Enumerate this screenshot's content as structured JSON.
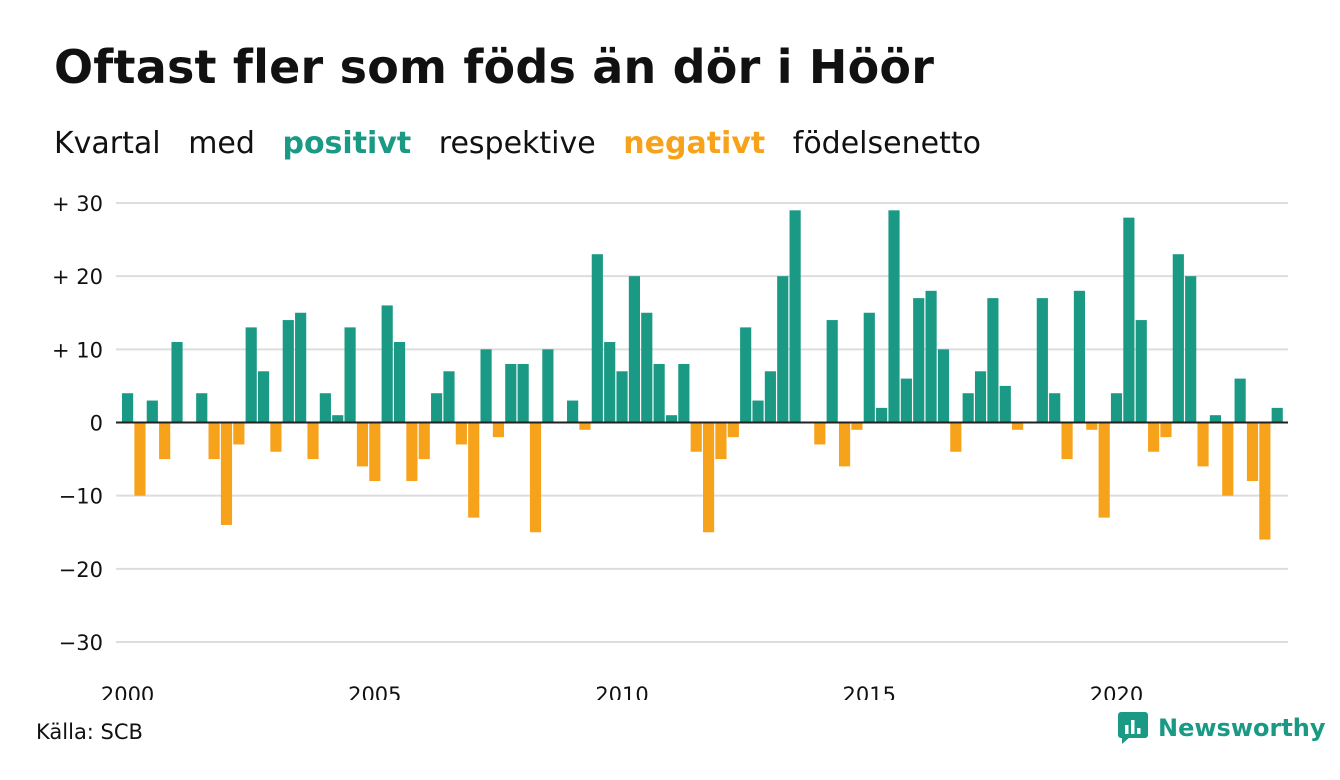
{
  "header": {
    "title": "Oftast fler som föds än dör i Höör",
    "subtitle": {
      "part1": "Kvartal",
      "part2": "med",
      "positive": "positivt",
      "part3": "respektive",
      "negative": "negativt",
      "part4": "födelsenetto"
    }
  },
  "colors": {
    "positive": "#1a9985",
    "negative": "#f7a21b",
    "grid": "#dddddd",
    "baseline": "#222222"
  },
  "footer": {
    "source": "Källa: SCB",
    "brand": "Newsworthy",
    "brand_icon": "bar-chart-chat-icon"
  },
  "chart_data": {
    "type": "bar",
    "x_start_year": 2000,
    "x_start_quarter": 1,
    "ylim": [
      -30,
      30
    ],
    "y_ticks": [
      30,
      20,
      10,
      0,
      -10,
      -20,
      -30
    ],
    "y_tick_labels": [
      "+ 30",
      "+ 20",
      "+ 10",
      "0",
      "−10",
      "−20",
      "−30"
    ],
    "x_ticks": [
      2000,
      2005,
      2010,
      2015,
      2020
    ],
    "x_tick_labels": [
      "2000",
      "2005",
      "2010",
      "2015",
      "2020"
    ],
    "grid": true,
    "values": [
      4,
      -10,
      3,
      -5,
      11,
      0,
      4,
      -5,
      -14,
      -3,
      13,
      7,
      -4,
      14,
      15,
      -5,
      4,
      1,
      13,
      -6,
      -8,
      16,
      11,
      -8,
      -5,
      4,
      7,
      -3,
      -13,
      10,
      -2,
      8,
      8,
      -15,
      10,
      0,
      3,
      -1,
      23,
      11,
      7,
      20,
      15,
      8,
      1,
      8,
      -4,
      -15,
      -5,
      -2,
      13,
      3,
      7,
      20,
      29,
      0,
      -3,
      14,
      -6,
      -1,
      15,
      2,
      29,
      6,
      17,
      18,
      10,
      -4,
      4,
      7,
      17,
      5,
      -1,
      0,
      17,
      4,
      -5,
      18,
      -1,
      -13,
      4,
      28,
      14,
      -4,
      -2,
      23,
      20,
      -6,
      1,
      -10,
      6,
      -8,
      -16,
      2
    ]
  }
}
